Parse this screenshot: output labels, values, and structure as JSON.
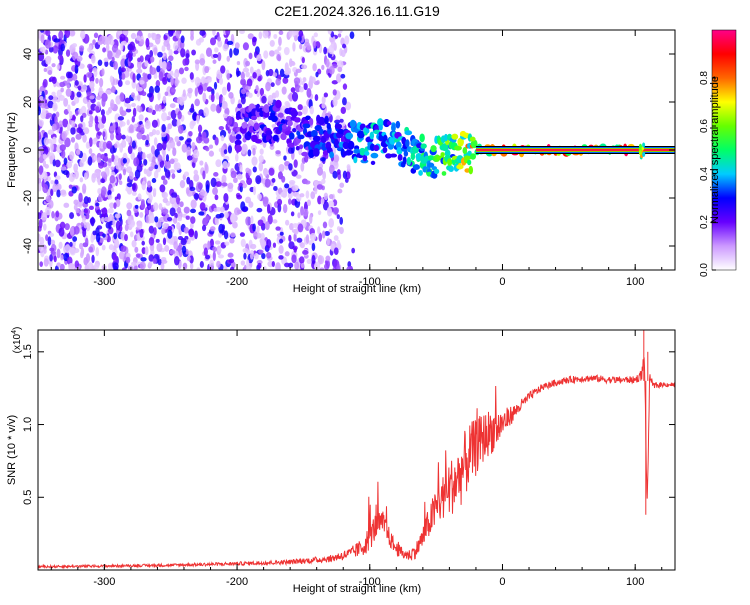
{
  "figure_title": "C2E1.2024.326.16.11.G19",
  "chart_data": [
    {
      "type": "heatmap",
      "name": "spectrogram",
      "xlabel": "Height of straight line (km)",
      "ylabel": "Frequency (Hz)",
      "xlim": [
        -350,
        130
      ],
      "ylim": [
        -50,
        50
      ],
      "xticks": [
        -300,
        -200,
        -100,
        0,
        100
      ],
      "yticks": [
        -40,
        -20,
        0,
        20,
        40
      ],
      "colorbar": {
        "label": "Normalized spectral amplitude",
        "range": [
          0,
          1
        ],
        "ticks": [
          "0.0",
          "0.2",
          "0.4",
          "0.6",
          "0.8"
        ],
        "colors": [
          "#ffffff",
          "#cc99ff",
          "#6600ff",
          "#0000ff",
          "#00ccff",
          "#00ff66",
          "#66ff00",
          "#ffff00",
          "#ff6600",
          "#ff0000",
          "#ff0088"
        ]
      },
      "features": {
        "noise_region_x": [
          -350,
          -130
        ],
        "tonal_line_frequency": 0,
        "tonal_line_x": [
          -20,
          130
        ],
        "drifting_signal": [
          {
            "x": -200,
            "freq": 8,
            "amp": 0.25
          },
          {
            "x": -170,
            "freq": 12,
            "amp": 0.3
          },
          {
            "x": -150,
            "freq": 6,
            "amp": 0.3
          },
          {
            "x": -120,
            "freq": 5,
            "amp": 0.35
          },
          {
            "x": -100,
            "freq": 2,
            "amp": 0.45
          },
          {
            "x": -85,
            "freq": 5,
            "amp": 0.4
          },
          {
            "x": -70,
            "freq": 0,
            "amp": 0.45
          },
          {
            "x": -55,
            "freq": -4,
            "amp": 0.5
          },
          {
            "x": -40,
            "freq": -2,
            "amp": 0.6
          },
          {
            "x": -20,
            "freq": 0,
            "amp": 0.8
          },
          {
            "x": 0,
            "freq": 0,
            "amp": 0.9
          },
          {
            "x": 100,
            "freq": 0,
            "amp": 0.9
          }
        ]
      }
    },
    {
      "type": "line",
      "name": "snr",
      "xlabel": "Height of straight line (km)",
      "ylabel": "SNR (10 * v/v)",
      "yscale_label": "(x10",
      "yscale_exp": "4",
      "xlim": [
        -350,
        130
      ],
      "ylim": [
        0,
        1.65
      ],
      "xticks": [
        -300,
        -200,
        -100,
        0,
        100
      ],
      "yticks": [
        0.5,
        1.0,
        1.5
      ],
      "ytick_labels": [
        "0.5",
        "1.0",
        "1.5"
      ],
      "color": "#ee3333",
      "series": [
        {
          "x": [
            -350,
            -300,
            -250,
            -200,
            -160,
            -130,
            -115,
            -105,
            -100,
            -95,
            -90,
            -85,
            -80,
            -75,
            -70,
            -65,
            -60,
            -55,
            -50,
            -45,
            -40,
            -35,
            -30,
            -25,
            -20,
            -15,
            -10,
            -5,
            0,
            10,
            20,
            30,
            40,
            50,
            60,
            70,
            80,
            90,
            100,
            105,
            107,
            109,
            111,
            113,
            115,
            120,
            130
          ],
          "y": [
            0.02,
            0.025,
            0.03,
            0.04,
            0.05,
            0.07,
            0.1,
            0.14,
            0.2,
            0.28,
            0.3,
            0.2,
            0.13,
            0.1,
            0.09,
            0.12,
            0.2,
            0.3,
            0.38,
            0.45,
            0.5,
            0.55,
            0.62,
            0.72,
            0.78,
            0.85,
            0.9,
            0.92,
            0.98,
            1.08,
            1.18,
            1.25,
            1.28,
            1.3,
            1.31,
            1.31,
            1.3,
            1.3,
            1.3,
            1.33,
            1.45,
            0.4,
            1.35,
            1.26,
            1.26,
            1.27,
            1.27
          ],
          "noise_amp": [
            0.01,
            0.01,
            0.012,
            0.015,
            0.02,
            0.03,
            0.05,
            0.08,
            0.12,
            0.12,
            0.1,
            0.08,
            0.06,
            0.05,
            0.05,
            0.07,
            0.1,
            0.14,
            0.18,
            0.2,
            0.25,
            0.25,
            0.3,
            0.28,
            0.25,
            0.22,
            0.2,
            0.18,
            0.12,
            0.06,
            0.04,
            0.03,
            0.03,
            0.03,
            0.03,
            0.03,
            0.03,
            0.03,
            0.03,
            0.05,
            0.1,
            0.05,
            0.05,
            0.03,
            0.03,
            0.02,
            0.02
          ]
        }
      ]
    }
  ]
}
